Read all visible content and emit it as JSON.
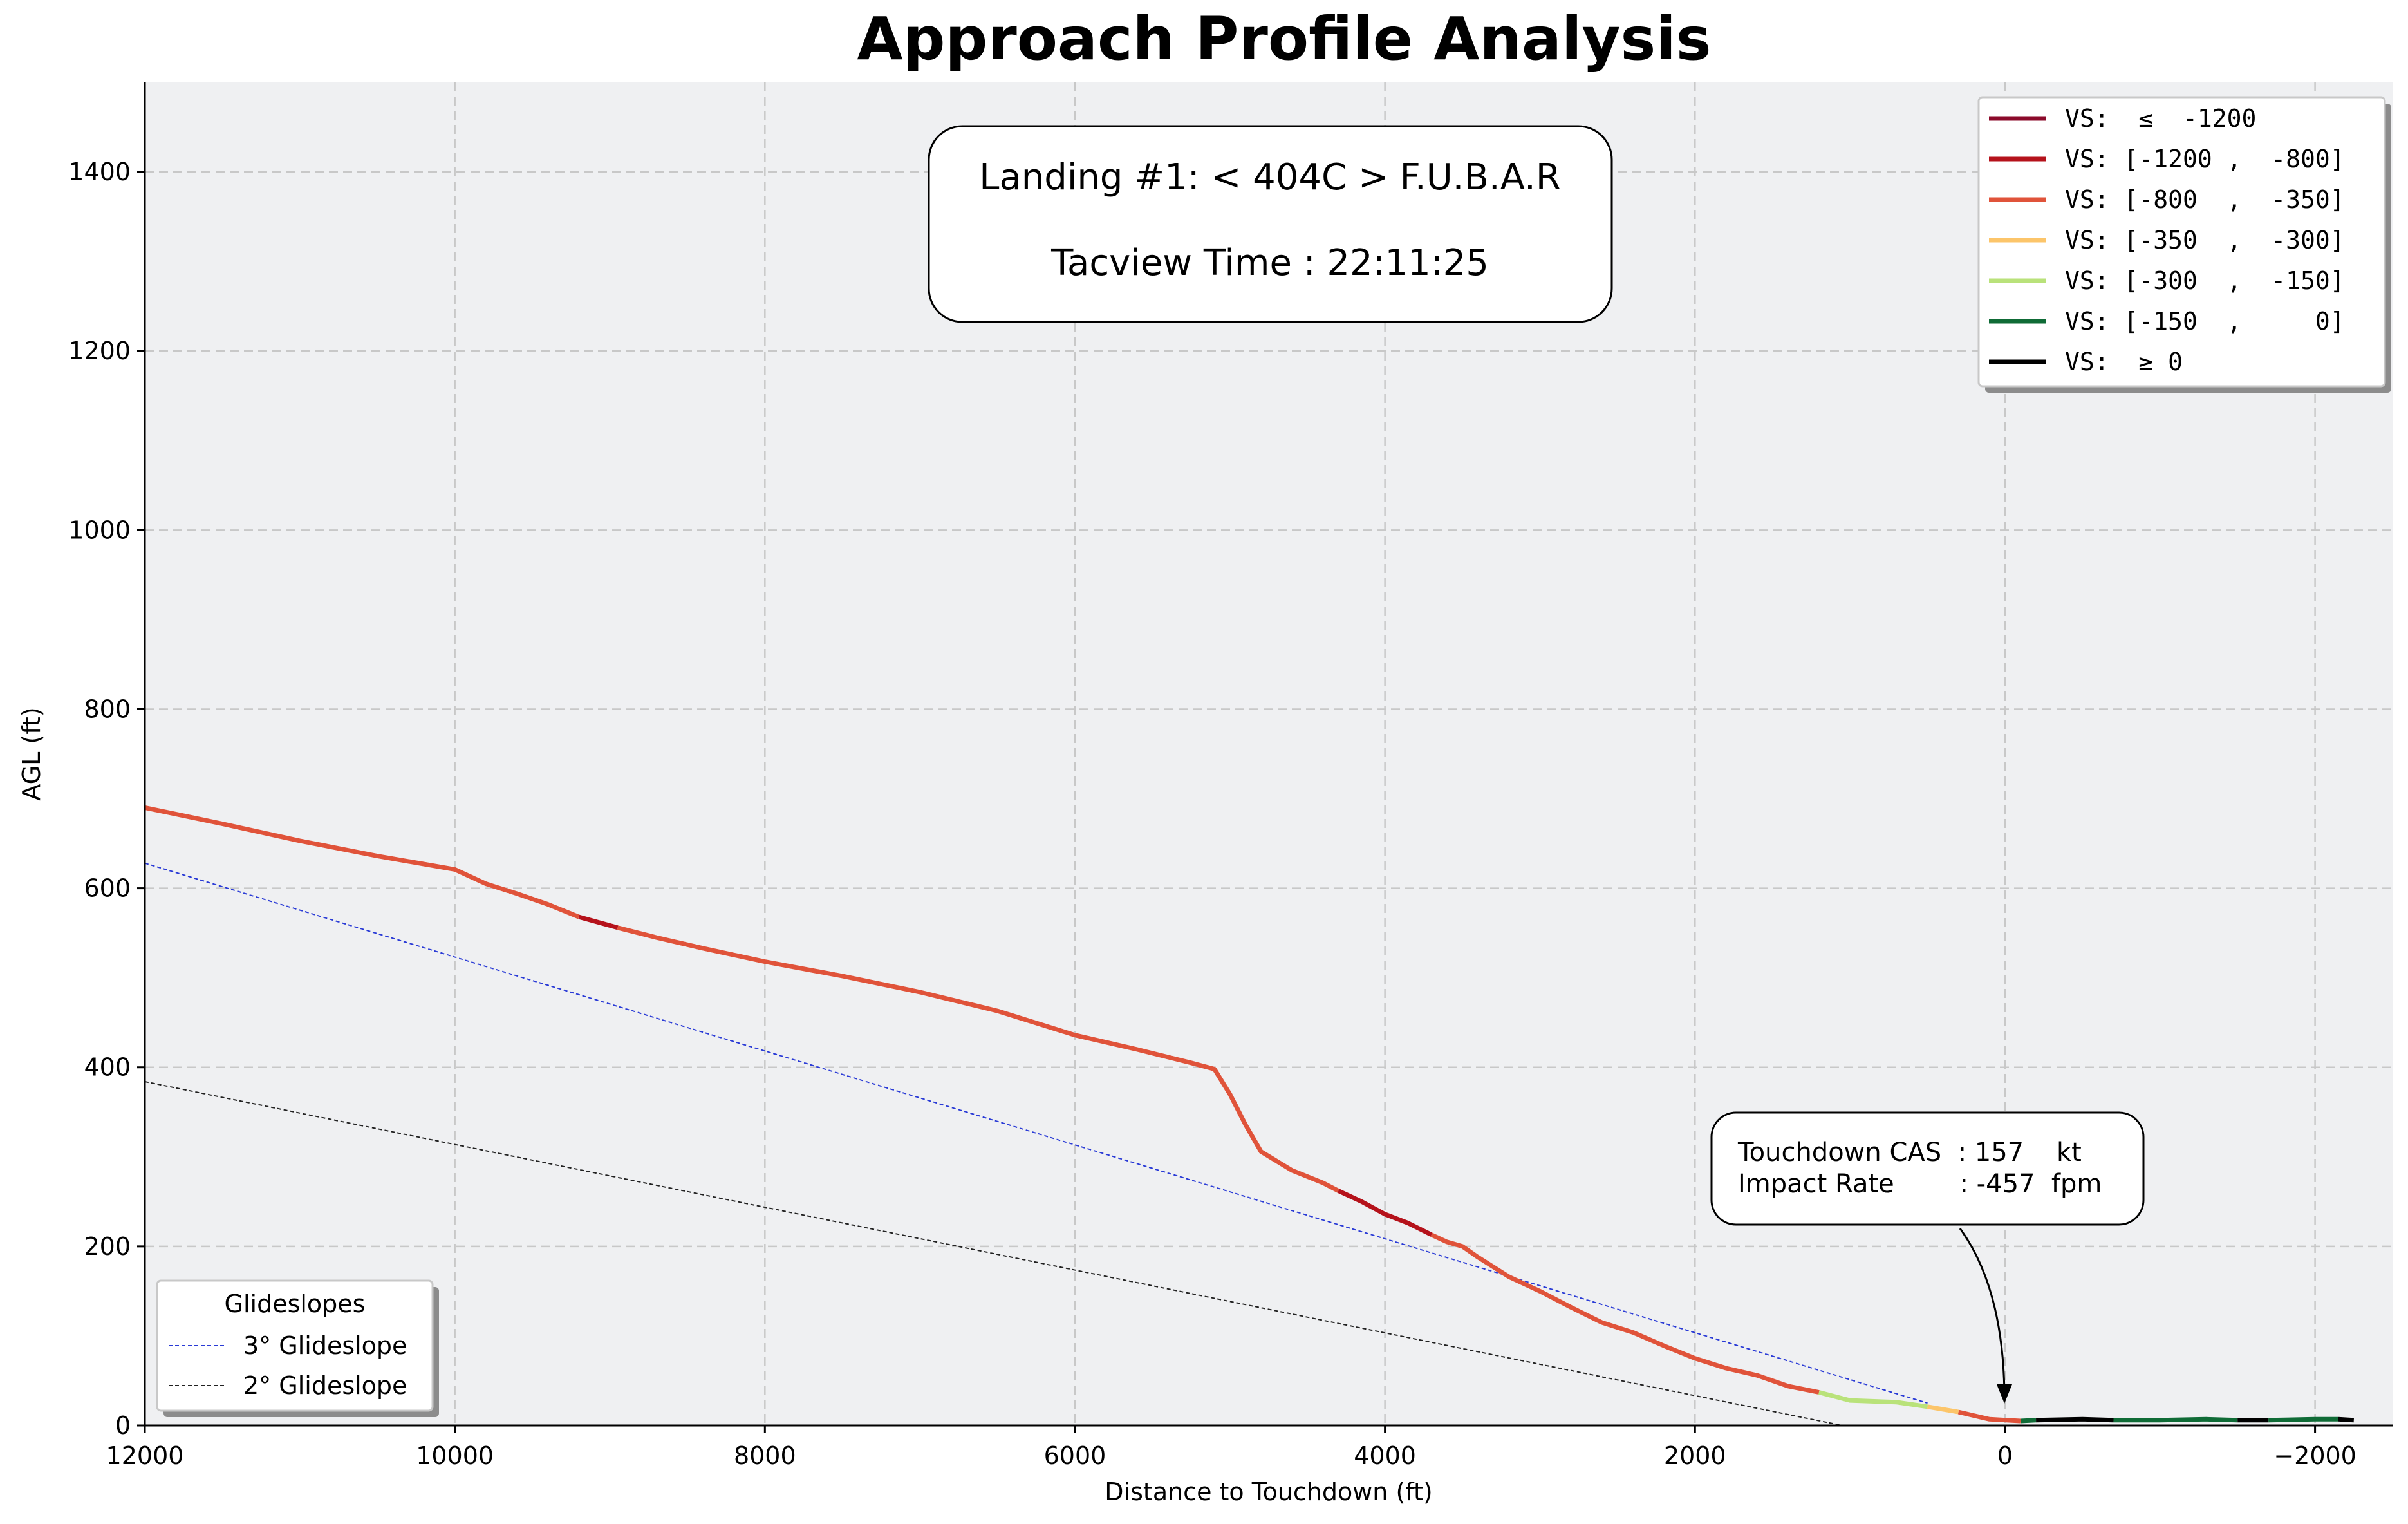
{
  "chart_data": {
    "type": "line",
    "title": "Approach Profile Analysis",
    "xlabel": "Distance to Touchdown (ft)",
    "ylabel": "AGL (ft)",
    "xlim": [
      12000,
      -2500
    ],
    "ylim": [
      0,
      1500
    ],
    "x_inverted": true,
    "xticks": [
      12000,
      10000,
      8000,
      6000,
      4000,
      2000,
      0,
      -2000
    ],
    "xtick_labels": [
      "12000",
      "10000",
      "8000",
      "6000",
      "4000",
      "2000",
      "0",
      "−2000"
    ],
    "yticks": [
      0,
      200,
      400,
      600,
      800,
      1000,
      1200,
      1400
    ],
    "ytick_labels": [
      "0",
      "200",
      "400",
      "600",
      "800",
      "1000",
      "1200",
      "1400"
    ],
    "grid": true,
    "colors": {
      "plot_bg": "#eff0f2",
      "grid": "#c8c8c8",
      "glide3": "#2a3bd6",
      "glide2": "#222222",
      "vs_le_m1200": "#8b0a2a",
      "vs_m1200_m800": "#b5121b",
      "vs_m800_m350": "#e0533a",
      "vs_m350_m300": "#fcc56a",
      "vs_m300_m150": "#b9e27a",
      "vs_m150_0": "#0f6b36",
      "vs_ge0": "#000000"
    },
    "info_box": {
      "line1": "Landing #1: < 404C > F.U.B.A.R",
      "line2": "Tacview Time : 22:11:25"
    },
    "annotation": {
      "line1": "Touchdown CAS  : 157    kt",
      "line2": "Impact Rate        : -457  fpm",
      "arrow_target": [
        0,
        20
      ]
    },
    "vs_legend": {
      "placement": "top-right",
      "entries": [
        {
          "label": "VS:  ≤  -1200",
          "color_key": "vs_le_m1200"
        },
        {
          "label": "VS: [-1200 ,  -800]",
          "color_key": "vs_m1200_m800"
        },
        {
          "label": "VS: [-800  ,  -350]",
          "color_key": "vs_m800_m350"
        },
        {
          "label": "VS: [-350  ,  -300]",
          "color_key": "vs_m350_m300"
        },
        {
          "label": "VS: [-300  ,  -150]",
          "color_key": "vs_m300_m150"
        },
        {
          "label": "VS: [-150  ,     0]",
          "color_key": "vs_m150_0"
        },
        {
          "label": "VS:  ≥ 0",
          "color_key": "vs_ge0"
        }
      ]
    },
    "glide_legend": {
      "placement": "bottom-left",
      "title": "Glideslopes",
      "entries": [
        {
          "label": "3° Glideslope",
          "color_key": "glide3"
        },
        {
          "label": "2° Glideslope",
          "color_key": "glide2"
        }
      ]
    },
    "glideslopes": [
      {
        "name": "3° Glideslope",
        "color_key": "glide3",
        "points": [
          [
            12000,
            628
          ],
          [
            500,
            25
          ]
        ]
      },
      {
        "name": "2° Glideslope",
        "color_key": "glide2",
        "points": [
          [
            12000,
            384
          ],
          [
            1050,
            0
          ]
        ]
      }
    ],
    "series": [
      {
        "vs_band": "vs_m800_m350",
        "points": [
          [
            12000,
            690
          ],
          [
            11500,
            672
          ],
          [
            11000,
            653
          ],
          [
            10500,
            636
          ],
          [
            10000,
            621
          ],
          [
            9800,
            605
          ],
          [
            9600,
            594
          ],
          [
            9400,
            582
          ],
          [
            9200,
            568
          ]
        ]
      },
      {
        "vs_band": "vs_m1200_m800",
        "points": [
          [
            9200,
            568
          ],
          [
            8950,
            556
          ]
        ]
      },
      {
        "vs_band": "vs_m800_m350",
        "points": [
          [
            8950,
            556
          ],
          [
            8700,
            545
          ],
          [
            8400,
            533
          ],
          [
            8000,
            518
          ],
          [
            7500,
            502
          ],
          [
            7000,
            484
          ],
          [
            6500,
            463
          ],
          [
            6000,
            436
          ],
          [
            5600,
            420
          ],
          [
            5250,
            405
          ],
          [
            5100,
            398
          ],
          [
            5000,
            370
          ],
          [
            4900,
            336
          ],
          [
            4800,
            306
          ],
          [
            4600,
            285
          ],
          [
            4400,
            271
          ],
          [
            4300,
            262
          ]
        ]
      },
      {
        "vs_band": "vs_m1200_m800",
        "points": [
          [
            4300,
            262
          ],
          [
            4150,
            250
          ],
          [
            4000,
            236
          ],
          [
            3850,
            226
          ],
          [
            3700,
            213
          ]
        ]
      },
      {
        "vs_band": "vs_m800_m350",
        "points": [
          [
            3700,
            213
          ],
          [
            3600,
            205
          ],
          [
            3500,
            200
          ],
          [
            3400,
            188
          ],
          [
            3200,
            166
          ],
          [
            3000,
            150
          ],
          [
            2800,
            132
          ],
          [
            2600,
            115
          ],
          [
            2400,
            104
          ],
          [
            2200,
            89
          ],
          [
            2000,
            75
          ],
          [
            1800,
            64
          ],
          [
            1600,
            56
          ],
          [
            1400,
            44
          ],
          [
            1200,
            37
          ]
        ]
      },
      {
        "vs_band": "vs_m300_m150",
        "points": [
          [
            1200,
            37
          ],
          [
            1000,
            28
          ],
          [
            700,
            26
          ],
          [
            500,
            21
          ]
        ]
      },
      {
        "vs_band": "vs_m350_m300",
        "points": [
          [
            500,
            21
          ],
          [
            300,
            15
          ]
        ]
      },
      {
        "vs_band": "vs_m800_m350",
        "points": [
          [
            300,
            15
          ],
          [
            100,
            7
          ],
          [
            -100,
            5
          ]
        ]
      },
      {
        "vs_band": "vs_m150_0",
        "points": [
          [
            -100,
            5
          ],
          [
            -200,
            6
          ]
        ]
      },
      {
        "vs_band": "vs_ge0",
        "points": [
          [
            -200,
            6
          ],
          [
            -500,
            7
          ],
          [
            -700,
            6
          ]
        ]
      },
      {
        "vs_band": "vs_m150_0",
        "points": [
          [
            -700,
            6
          ],
          [
            -1000,
            6
          ],
          [
            -1300,
            7
          ],
          [
            -1500,
            6
          ]
        ]
      },
      {
        "vs_band": "vs_ge0",
        "points": [
          [
            -1500,
            6
          ],
          [
            -1700,
            6
          ]
        ]
      },
      {
        "vs_band": "vs_m150_0",
        "points": [
          [
            -1700,
            6
          ],
          [
            -2000,
            7
          ],
          [
            -2150,
            7
          ]
        ]
      },
      {
        "vs_band": "vs_ge0",
        "points": [
          [
            -2150,
            7
          ],
          [
            -2250,
            6
          ]
        ]
      }
    ]
  }
}
